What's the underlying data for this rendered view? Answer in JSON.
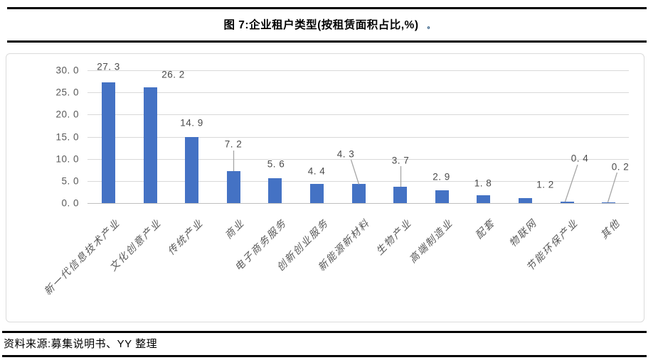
{
  "figure": {
    "title": "图 7:企业租户类型(按租赁面积占比,%)",
    "title_mark": "。"
  },
  "chart_data": {
    "type": "bar",
    "title": "企业租户类型(按租赁面积占比,%)",
    "categories": [
      "新一代信息技术产业",
      "文化创意产业",
      "传统产业",
      "商业",
      "电子商务服务",
      "创新创业服务",
      "新能源新材料",
      "生物产业",
      "高端制造业",
      "配套",
      "物联网",
      "节能环保产业",
      "其他"
    ],
    "values": [
      27.3,
      26.2,
      14.9,
      7.2,
      5.6,
      4.4,
      4.3,
      3.7,
      2.9,
      1.8,
      1.2,
      0.4,
      0.2
    ],
    "data_labels": [
      "27. 3",
      "26. 2",
      "14. 9",
      "7. 2",
      "5. 6",
      "4. 4",
      "4. 3",
      "3. 7",
      "2. 9",
      "1. 8",
      "1. 2",
      "0. 4",
      "0. 2"
    ],
    "y_ticks": [
      0,
      5,
      10,
      15,
      20,
      25,
      30
    ],
    "y_tick_labels": [
      "0. 0",
      "5. 0",
      "10. 0",
      "15. 0",
      "20. 0",
      "25. 0",
      "30. 0"
    ],
    "ylim": [
      0,
      30
    ],
    "xlabel": "",
    "ylabel": "",
    "grid": "horizontal-only",
    "legend": "none",
    "bar_color": "#4472C4"
  },
  "colors": {
    "bar": "#4472C4",
    "gridline": "#D9D9D9",
    "axis_text": "#595959",
    "leader_line": "#A6A6A6",
    "title_mark_blue": "#1F4E79"
  },
  "footer": {
    "source": "资料来源:募集说明书、YY 整理"
  }
}
